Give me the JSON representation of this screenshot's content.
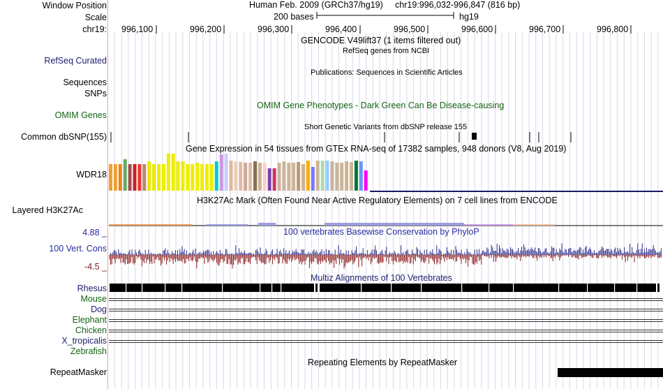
{
  "labels": {
    "window_position": "Window Position",
    "scale": "Scale",
    "chrom": "chr19:",
    "refseq": "RefSeq Curated",
    "sequences": "Sequences",
    "snps": "SNPs",
    "omim": "OMIM Genes",
    "common_dbsnp": "Common dbSNP(155)",
    "wdr18": "WDR18",
    "layered": "Layered H3K27Ac",
    "cons_max": "4.88 _",
    "cons_label": "100 Vert. Cons",
    "cons_min": "-4.5 _",
    "repeatmasker": "RepeatMasker"
  },
  "header": {
    "assembly": "Human Feb. 2009 (GRCh37/hg19)",
    "position": "chr19:996,032-996,847 (816 bp)",
    "scale_text": "200 bases",
    "scale_db": "hg19"
  },
  "ruler": {
    "ticks": [
      "996,100",
      "996,200",
      "996,300",
      "996,400",
      "996,500",
      "996,600",
      "996,700",
      "996,800"
    ]
  },
  "tracks": {
    "gencode": "GENCODE V49lift37 (1 items filtered out)",
    "refseq": "RefSeq genes from NCBI",
    "publications": "Publications: Sequences in Scientific Articles",
    "omim": "OMIM Gene Phenotypes - Dark Green Can Be Disease-causing",
    "dbsnp": "Short Genetic Variants from dbSNP release 155",
    "gtex": "Gene Expression in 54 tissues from GTEx RNA-seq of 17382 samples, 948 donors (V8, Aug 2019)",
    "h3k27ac": "H3K27Ac Mark (Often Found Near Active Regulatory Elements) on 7 cell lines from ENCODE",
    "phylop": "100 vertebrates Basewise Conservation by PhyloP",
    "multiz": "Multiz Alignments of 100 Vertebrates",
    "repeatmasker": "Repeating Elements by RepeatMasker"
  },
  "species": [
    "Rhesus",
    "Mouse",
    "Dog",
    "Elephant",
    "Chicken",
    "X_tropicalis",
    "Zebrafish"
  ],
  "colors": {
    "label_navy": "#1d1d6e",
    "label_green": "#136313",
    "grid": "#d8d8e8",
    "conservation_pos": "#2a2a8a",
    "conservation_neg": "#8b1a1a"
  },
  "gtex_bars": [
    {
      "color": "#f0a030",
      "h": 0.72
    },
    {
      "color": "#f0a030",
      "h": 0.72
    },
    {
      "color": "#f08020",
      "h": 0.72
    },
    {
      "color": "#66aa66",
      "h": 0.85
    },
    {
      "color": "#a05050",
      "h": 0.72
    },
    {
      "color": "#cc2020",
      "h": 0.72
    },
    {
      "color": "#ee3333",
      "h": 0.72
    },
    {
      "color": "#bb8866",
      "h": 0.72
    },
    {
      "color": "#e8e800",
      "h": 0.8
    },
    {
      "color": "#e8e800",
      "h": 0.72
    },
    {
      "color": "#eeee00",
      "h": 0.72
    },
    {
      "color": "#eeee00",
      "h": 0.72
    },
    {
      "color": "#eeee00",
      "h": 1.0
    },
    {
      "color": "#eeee00",
      "h": 1.0
    },
    {
      "color": "#eeee00",
      "h": 0.8
    },
    {
      "color": "#eeee00",
      "h": 0.8
    },
    {
      "color": "#eeee00",
      "h": 0.72
    },
    {
      "color": "#eeee00",
      "h": 0.72
    },
    {
      "color": "#eeee00",
      "h": 0.75
    },
    {
      "color": "#eeee00",
      "h": 0.72
    },
    {
      "color": "#eeee00",
      "h": 0.72
    },
    {
      "color": "#eeee00",
      "h": 0.72
    },
    {
      "color": "#00cccc",
      "h": 0.8
    },
    {
      "color": "#cc99dd",
      "h": 0.98
    },
    {
      "color": "#ccccff",
      "h": 1.0
    },
    {
      "color": "#ddbb99",
      "h": 0.82
    },
    {
      "color": "#eeccbb",
      "h": 0.8
    },
    {
      "color": "#ddbbaa",
      "h": 0.78
    },
    {
      "color": "#ccaa99",
      "h": 0.75
    },
    {
      "color": "#ddbbaa",
      "h": 0.75
    },
    {
      "color": "#8a6f4a",
      "h": 0.8
    },
    {
      "color": "#ccb499",
      "h": 0.75
    },
    {
      "color": "#ffcccc",
      "h": 0.75
    },
    {
      "color": "#7744aa",
      "h": 0.6
    },
    {
      "color": "#cc3366",
      "h": 0.6
    },
    {
      "color": "#ccb499",
      "h": 0.75
    },
    {
      "color": "#ccb499",
      "h": 0.8
    },
    {
      "color": "#ccb499",
      "h": 0.75
    },
    {
      "color": "#ccb499",
      "h": 0.75
    },
    {
      "color": "#bb9977",
      "h": 0.78
    },
    {
      "color": "#ccb499",
      "h": 0.72
    },
    {
      "color": "#ffaa00",
      "h": 0.82
    },
    {
      "color": "#7777ff",
      "h": 0.65
    },
    {
      "color": "#ccb499",
      "h": 0.82
    },
    {
      "color": "#aaddaa",
      "h": 0.82
    },
    {
      "color": "#99ccff",
      "h": 0.82
    },
    {
      "color": "#ccb499",
      "h": 0.8
    },
    {
      "color": "#ccb499",
      "h": 0.75
    },
    {
      "color": "#ccb499",
      "h": 0.75
    },
    {
      "color": "#ccb499",
      "h": 0.8
    },
    {
      "color": "#ccb499",
      "h": 0.78
    },
    {
      "color": "#007733",
      "h": 0.82
    },
    {
      "color": "#6699ff",
      "h": 0.8
    },
    {
      "color": "#ff00ff",
      "h": 0.55
    }
  ],
  "snp_marks": [
    159,
    270,
    551,
    658,
    759,
    772,
    818
  ]
}
